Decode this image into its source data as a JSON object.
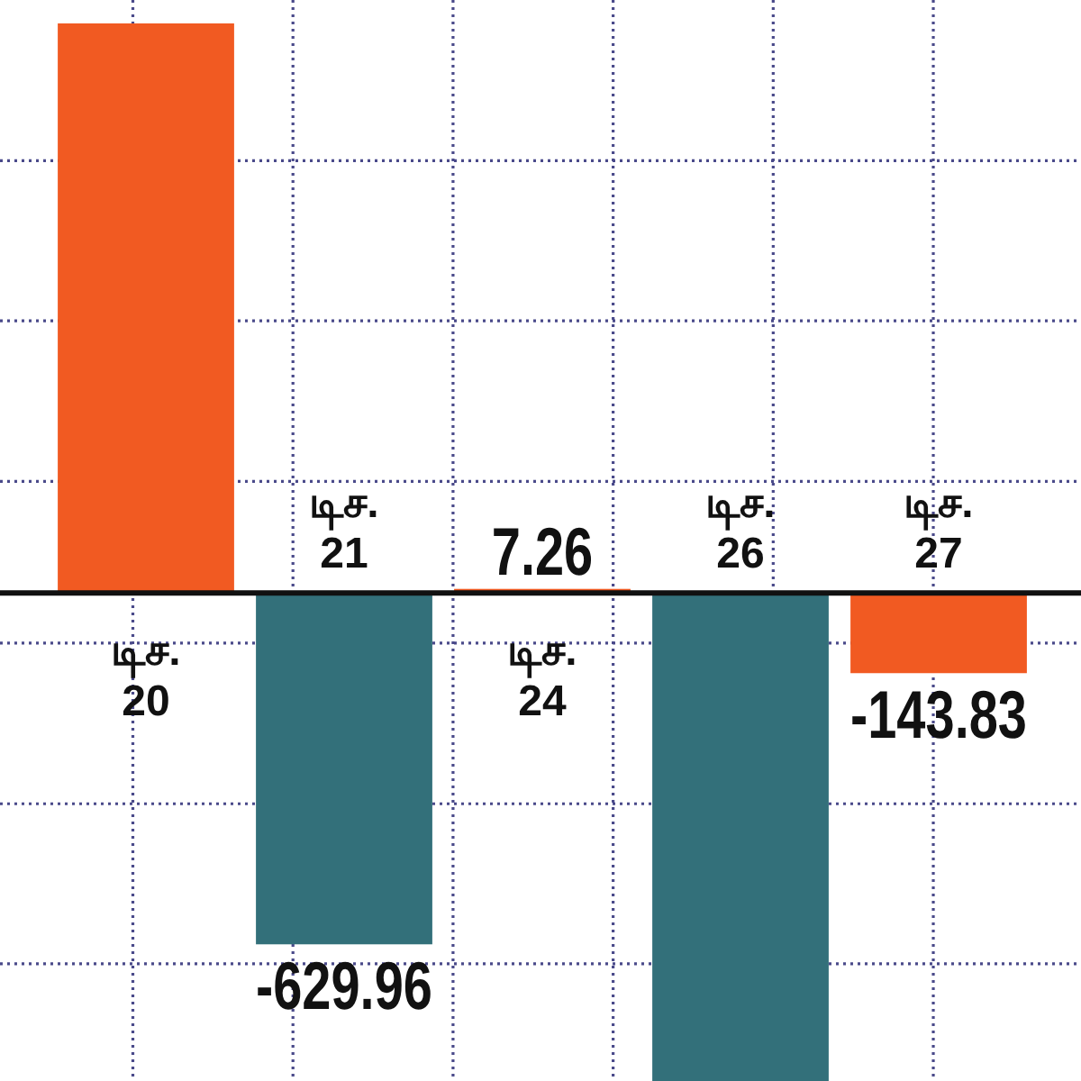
{
  "chart_data": {
    "type": "bar",
    "categories": [
      "டிச. 20",
      "டிச. 21",
      "டிச. 24",
      "டிச. 26",
      "டிச. 27"
    ],
    "values": [
      1021,
      -629.96,
      7.26,
      -875,
      -143.83
    ],
    "colors": [
      "#f15a22",
      "#33707a",
      "#f15a22",
      "#33707a",
      "#f15a22"
    ],
    "value_labels": [
      null,
      "-629.96",
      "7.26",
      null,
      "-143.83"
    ],
    "ylim": [
      -875,
      1063
    ],
    "yticks": [
      {
        "value": 775,
        "label": null
      },
      {
        "value": 488,
        "label": null
      },
      {
        "value": 200,
        "label": null
      },
      {
        "value": -90,
        "label": null
      },
      {
        "value": -378,
        "label": null
      },
      {
        "value": -665,
        "label": null
      }
    ],
    "grid": true
  }
}
